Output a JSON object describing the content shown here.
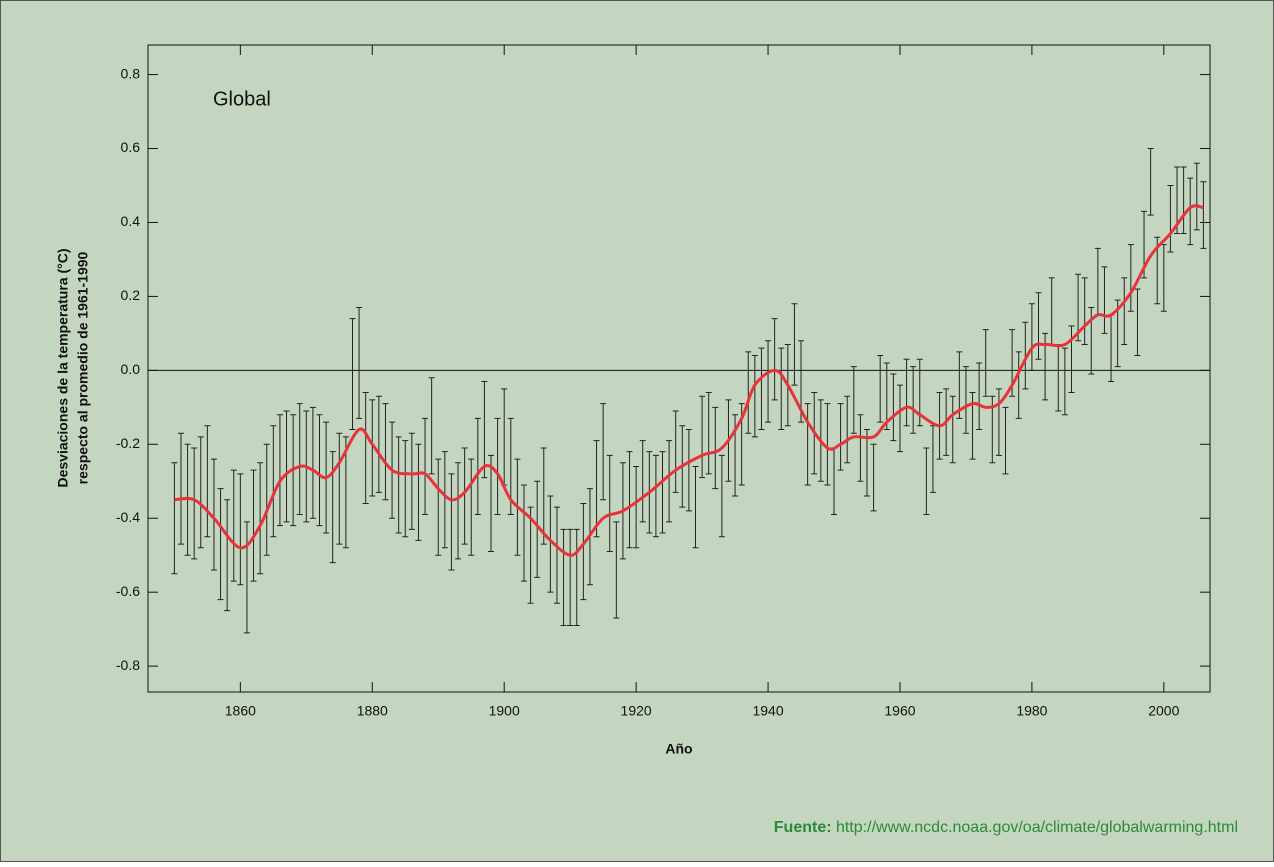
{
  "chart_data": {
    "type": "errorbar",
    "title": "Global",
    "xlabel": "Año",
    "ylabel": [
      "Desviaciones de la temperatura (°C)",
      "respecto al promedio de 1961-1990"
    ],
    "xlim": [
      1846,
      2007
    ],
    "ylim": [
      -0.87,
      0.88
    ],
    "xticks": [
      1860,
      1880,
      1900,
      1920,
      1940,
      1960,
      1980,
      2000
    ],
    "yticks": [
      -0.8,
      -0.6,
      -0.4,
      -0.2,
      {
        "value": 0,
        "label": "0.0"
      },
      0.2,
      0.4,
      0.6,
      0.8
    ],
    "reference_line": 0,
    "series": [
      {
        "color": "#222222",
        "x": [
          1850,
          1851,
          1852,
          1853,
          1854,
          1855,
          1856,
          1857,
          1858,
          1859,
          1860,
          1861,
          1862,
          1863,
          1864,
          1865,
          1866,
          1867,
          1868,
          1869,
          1870,
          1871,
          1872,
          1873,
          1874,
          1875,
          1876,
          1877,
          1878,
          1879,
          1880,
          1881,
          1882,
          1883,
          1884,
          1885,
          1886,
          1887,
          1888,
          1889,
          1890,
          1891,
          1892,
          1893,
          1894,
          1895,
          1896,
          1897,
          1898,
          1899,
          1900,
          1901,
          1902,
          1903,
          1904,
          1905,
          1906,
          1907,
          1908,
          1909,
          1910,
          1911,
          1912,
          1913,
          1914,
          1915,
          1916,
          1917,
          1918,
          1919,
          1920,
          1921,
          1922,
          1923,
          1924,
          1925,
          1926,
          1927,
          1928,
          1929,
          1930,
          1931,
          1932,
          1933,
          1934,
          1935,
          1936,
          1937,
          1938,
          1939,
          1940,
          1941,
          1942,
          1943,
          1944,
          1945,
          1946,
          1947,
          1948,
          1949,
          1950,
          1951,
          1952,
          1953,
          1954,
          1955,
          1956,
          1957,
          1958,
          1959,
          1960,
          1961,
          1962,
          1963,
          1964,
          1965,
          1966,
          1967,
          1968,
          1969,
          1970,
          1971,
          1972,
          1973,
          1974,
          1975,
          1976,
          1977,
          1978,
          1979,
          1980,
          1981,
          1982,
          1983,
          1984,
          1985,
          1986,
          1987,
          1988,
          1989,
          1990,
          1991,
          1992,
          1993,
          1994,
          1995,
          1996,
          1997,
          1998,
          1999,
          2000,
          2001,
          2002,
          2003,
          2004,
          2005,
          2006
        ],
        "values": [
          -0.4,
          -0.32,
          -0.35,
          -0.36,
          -0.33,
          -0.3,
          -0.39,
          -0.47,
          -0.5,
          -0.42,
          -0.43,
          -0.56,
          -0.42,
          -0.4,
          -0.35,
          -0.3,
          -0.27,
          -0.26,
          -0.27,
          -0.24,
          -0.26,
          -0.25,
          -0.27,
          -0.29,
          -0.37,
          -0.32,
          -0.33,
          -0.01,
          0.02,
          -0.21,
          -0.21,
          -0.2,
          -0.22,
          -0.27,
          -0.31,
          -0.32,
          -0.3,
          -0.33,
          -0.26,
          -0.15,
          -0.37,
          -0.35,
          -0.41,
          -0.38,
          -0.34,
          -0.37,
          -0.26,
          -0.16,
          -0.36,
          -0.26,
          -0.18,
          -0.26,
          -0.37,
          -0.44,
          -0.5,
          -0.43,
          -0.34,
          -0.47,
          -0.5,
          -0.56,
          -0.56,
          -0.56,
          -0.49,
          -0.45,
          -0.32,
          -0.22,
          -0.36,
          -0.54,
          -0.38,
          -0.35,
          -0.37,
          -0.3,
          -0.33,
          -0.34,
          -0.33,
          -0.3,
          -0.22,
          -0.26,
          -0.27,
          -0.37,
          -0.18,
          -0.17,
          -0.21,
          -0.34,
          -0.19,
          -0.23,
          -0.2,
          -0.06,
          -0.07,
          -0.05,
          -0.03,
          0.03,
          -0.05,
          -0.04,
          0.07,
          -0.03,
          -0.2,
          -0.17,
          -0.19,
          -0.2,
          -0.3,
          -0.18,
          -0.16,
          -0.08,
          -0.21,
          -0.25,
          -0.29,
          -0.05,
          -0.07,
          -0.1,
          -0.13,
          -0.06,
          -0.08,
          -0.06,
          -0.3,
          -0.24,
          -0.15,
          -0.14,
          -0.16,
          -0.04,
          -0.08,
          -0.15,
          -0.07,
          0.02,
          -0.16,
          -0.14,
          -0.19,
          0.02,
          -0.04,
          0.04,
          0.09,
          0.12,
          0.01,
          0.16,
          -0.02,
          -0.03,
          0.03,
          0.17,
          0.16,
          0.08,
          0.24,
          0.19,
          0.06,
          0.1,
          0.16,
          0.25,
          0.13,
          0.34,
          0.51,
          0.27,
          0.25,
          0.41,
          0.46,
          0.46,
          0.43,
          0.47,
          0.42
        ],
        "errors": [
          0.15,
          0.15,
          0.15,
          0.15,
          0.15,
          0.15,
          0.15,
          0.15,
          0.15,
          0.15,
          0.15,
          0.15,
          0.15,
          0.15,
          0.15,
          0.15,
          0.15,
          0.15,
          0.15,
          0.15,
          0.15,
          0.15,
          0.15,
          0.15,
          0.15,
          0.15,
          0.15,
          0.15,
          0.15,
          0.15,
          0.13,
          0.13,
          0.13,
          0.13,
          0.13,
          0.13,
          0.13,
          0.13,
          0.13,
          0.13,
          0.13,
          0.13,
          0.13,
          0.13,
          0.13,
          0.13,
          0.13,
          0.13,
          0.13,
          0.13,
          0.13,
          0.13,
          0.13,
          0.13,
          0.13,
          0.13,
          0.13,
          0.13,
          0.13,
          0.13,
          0.13,
          0.13,
          0.13,
          0.13,
          0.13,
          0.13,
          0.13,
          0.13,
          0.13,
          0.13,
          0.11,
          0.11,
          0.11,
          0.11,
          0.11,
          0.11,
          0.11,
          0.11,
          0.11,
          0.11,
          0.11,
          0.11,
          0.11,
          0.11,
          0.11,
          0.11,
          0.11,
          0.11,
          0.11,
          0.11,
          0.11,
          0.11,
          0.11,
          0.11,
          0.11,
          0.11,
          0.11,
          0.11,
          0.11,
          0.11,
          0.09,
          0.09,
          0.09,
          0.09,
          0.09,
          0.09,
          0.09,
          0.09,
          0.09,
          0.09,
          0.09,
          0.09,
          0.09,
          0.09,
          0.09,
          0.09,
          0.09,
          0.09,
          0.09,
          0.09,
          0.09,
          0.09,
          0.09,
          0.09,
          0.09,
          0.09,
          0.09,
          0.09,
          0.09,
          0.09,
          0.09,
          0.09,
          0.09,
          0.09,
          0.09,
          0.09,
          0.09,
          0.09,
          0.09,
          0.09,
          0.09,
          0.09,
          0.09,
          0.09,
          0.09,
          0.09,
          0.09,
          0.09,
          0.09,
          0.09,
          0.09,
          0.09,
          0.09,
          0.09,
          0.09,
          0.09,
          0.09
        ]
      },
      {
        "color": "#e8323c",
        "x": [
          1850,
          1853,
          1856,
          1860,
          1863,
          1866,
          1869,
          1871,
          1873,
          1875,
          1878,
          1880,
          1883,
          1886,
          1888,
          1890,
          1892,
          1894,
          1897,
          1899,
          1901,
          1904,
          1907,
          1910,
          1912,
          1915,
          1918,
          1922,
          1926,
          1930,
          1933,
          1936,
          1938,
          1941,
          1943,
          1946,
          1949,
          1951,
          1953,
          1956,
          1958,
          1961,
          1963,
          1966,
          1968,
          1971,
          1973,
          1975,
          1977,
          1980,
          1982,
          1985,
          1988,
          1990,
          1992,
          1995,
          1998,
          2001,
          2004,
          2006
        ],
        "values": [
          -0.35,
          -0.35,
          -0.4,
          -0.48,
          -0.42,
          -0.3,
          -0.26,
          -0.27,
          -0.29,
          -0.25,
          -0.16,
          -0.2,
          -0.27,
          -0.28,
          -0.28,
          -0.32,
          -0.35,
          -0.33,
          -0.26,
          -0.28,
          -0.35,
          -0.4,
          -0.46,
          -0.5,
          -0.47,
          -0.4,
          -0.38,
          -0.33,
          -0.27,
          -0.23,
          -0.21,
          -0.13,
          -0.04,
          0.0,
          -0.04,
          -0.14,
          -0.21,
          -0.2,
          -0.18,
          -0.18,
          -0.14,
          -0.1,
          -0.12,
          -0.15,
          -0.12,
          -0.09,
          -0.1,
          -0.09,
          -0.04,
          0.06,
          0.07,
          0.07,
          0.12,
          0.15,
          0.15,
          0.21,
          0.31,
          0.37,
          0.44,
          0.44
        ]
      }
    ]
  },
  "footer": {
    "label": "Fuente:",
    "url": "http://www.ncdc.noaa.gov/oa/climate/globalwarming.html"
  }
}
